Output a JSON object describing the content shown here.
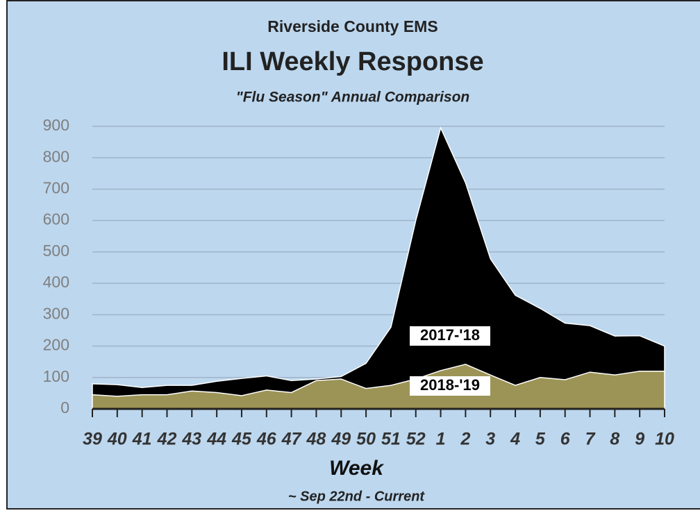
{
  "chart_data": {
    "type": "area",
    "header": "Riverside County EMS",
    "title": "ILI Weekly Response",
    "subtitle": "\"Flu Season\" Annual Comparison",
    "x_label": "Week",
    "footnote": "~ Sep 22nd  - Current",
    "categories": [
      "39",
      "40",
      "41",
      "42",
      "43",
      "44",
      "45",
      "46",
      "47",
      "48",
      "49",
      "50",
      "51",
      "52",
      "1",
      "2",
      "3",
      "4",
      "5",
      "6",
      "7",
      "8",
      "9",
      "10"
    ],
    "series": [
      {
        "name": "2017-'18",
        "color": "#000000",
        "values": [
          80,
          77,
          68,
          75,
          75,
          88,
          97,
          105,
          90,
          95,
          103,
          145,
          260,
          600,
          895,
          720,
          478,
          362,
          320,
          273,
          265,
          232,
          233,
          200
        ]
      },
      {
        "name": "2018-'19",
        "color": "#9c9456",
        "values": [
          45,
          40,
          45,
          45,
          57,
          52,
          42,
          60,
          52,
          90,
          95,
          65,
          75,
          95,
          122,
          142,
          108,
          75,
          100,
          93,
          117,
          108,
          120,
          120
        ]
      }
    ],
    "ylim": [
      0,
      900
    ],
    "yticks": [
      0,
      100,
      200,
      300,
      400,
      500,
      600,
      700,
      800,
      900
    ],
    "grid": true
  }
}
